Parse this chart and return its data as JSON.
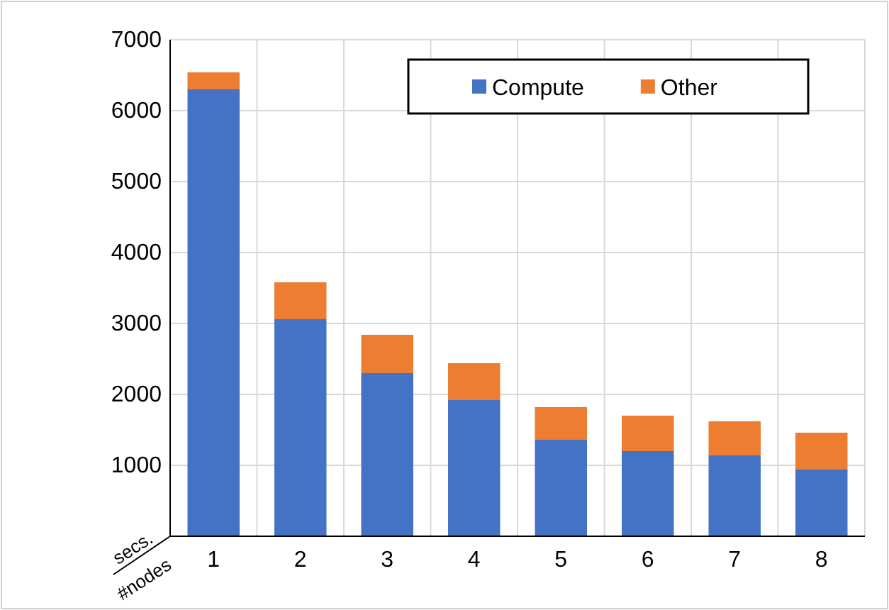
{
  "chart_data": {
    "type": "bar",
    "stacked": true,
    "xlabel": "#nodes",
    "ylabel": "secs.",
    "categories": [
      "1",
      "2",
      "3",
      "4",
      "5",
      "6",
      "7",
      "8"
    ],
    "series": [
      {
        "name": "Compute",
        "color": "#4472c4",
        "values": [
          6300,
          3060,
          2300,
          1920,
          1360,
          1200,
          1140,
          940
        ]
      },
      {
        "name": "Other",
        "color": "#ed7d31",
        "values": [
          240,
          520,
          540,
          520,
          460,
          500,
          480,
          520
        ]
      }
    ],
    "ylim": [
      0,
      7000
    ],
    "yticks": [
      {
        "value": 0,
        "label": null
      },
      1000,
      2000,
      3000,
      4000,
      5000,
      6000,
      7000
    ],
    "grid": true,
    "legend": "top right"
  }
}
